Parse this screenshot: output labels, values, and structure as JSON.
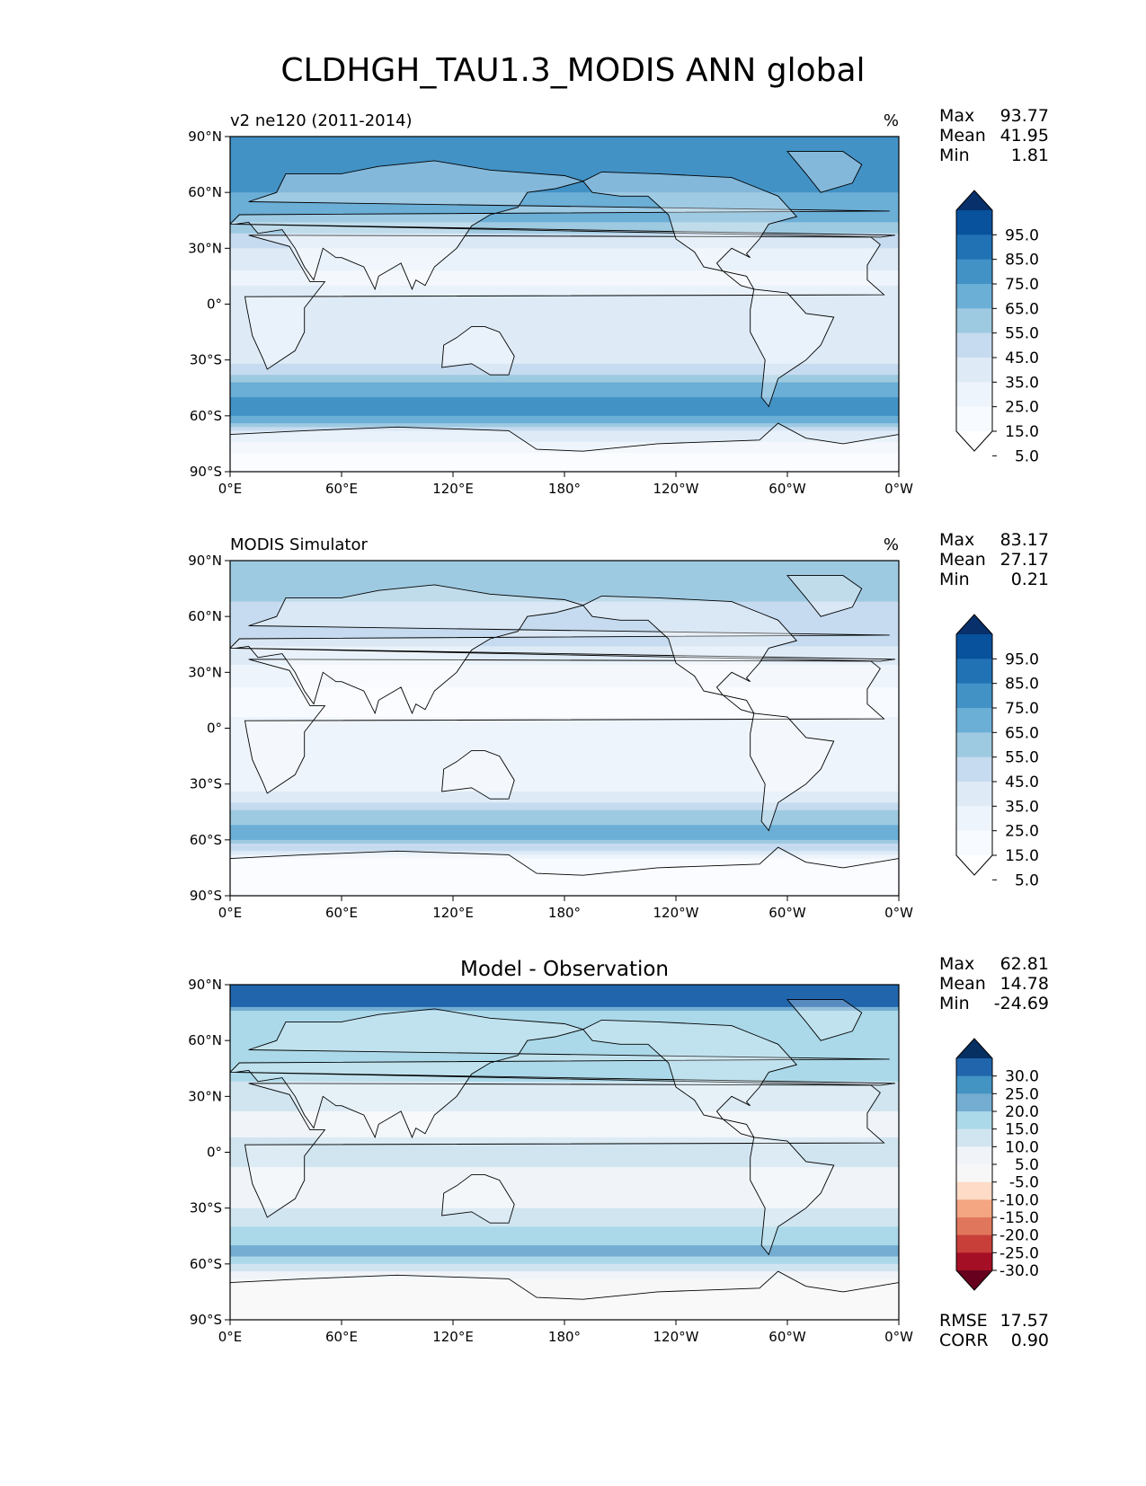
{
  "figure": {
    "title": "CLDHGH_TAU1.3_MODIS ANN global"
  },
  "panels": [
    {
      "left_title": "v2 ne120 (2011-2014)",
      "center_title": "",
      "units": "%",
      "stats": [
        {
          "label": "Max",
          "value": "93.77"
        },
        {
          "label": "Mean",
          "value": "41.95"
        },
        {
          "label": "Min",
          "value": "1.81"
        }
      ],
      "colorbar": {
        "levels": [
          "95.0",
          "85.0",
          "75.0",
          "65.0",
          "55.0",
          "45.0",
          "35.0",
          "25.0",
          "15.0",
          "5.0"
        ],
        "colors": [
          "#08306b",
          "#08519c",
          "#2171b5",
          "#4292c6",
          "#6baed6",
          "#9ecae1",
          "#c6dbef",
          "#deebf7",
          "#eef4fb",
          "#f7fbff",
          "#ffffff"
        ]
      },
      "extra_stats": []
    },
    {
      "left_title": "MODIS Simulator",
      "center_title": "",
      "units": "%",
      "stats": [
        {
          "label": "Max",
          "value": "83.17"
        },
        {
          "label": "Mean",
          "value": "27.17"
        },
        {
          "label": "Min",
          "value": "0.21"
        }
      ],
      "colorbar": {
        "levels": [
          "95.0",
          "85.0",
          "75.0",
          "65.0",
          "55.0",
          "45.0",
          "35.0",
          "25.0",
          "15.0",
          "5.0"
        ],
        "colors": [
          "#08306b",
          "#08519c",
          "#2171b5",
          "#4292c6",
          "#6baed6",
          "#9ecae1",
          "#c6dbef",
          "#deebf7",
          "#eef4fb",
          "#f7fbff",
          "#ffffff"
        ]
      },
      "extra_stats": []
    },
    {
      "left_title": "",
      "center_title": "Model - Observation",
      "units": "",
      "stats": [
        {
          "label": "Max",
          "value": "62.81"
        },
        {
          "label": "Mean",
          "value": "14.78"
        },
        {
          "label": "Min",
          "value": "-24.69"
        }
      ],
      "colorbar": {
        "levels": [
          "30.0",
          "25.0",
          "20.0",
          "15.0",
          "10.0",
          "5.0",
          "-5.0",
          "-10.0",
          "-15.0",
          "-20.0",
          "-25.0",
          "-30.0"
        ],
        "colors": [
          "#053061",
          "#2166ac",
          "#4393c3",
          "#74add1",
          "#abd9e9",
          "#d1e5f0",
          "#f0f4f8",
          "#f7f7f7",
          "#fddbc7",
          "#f4a582",
          "#e0775c",
          "#c83f3a",
          "#a50f26",
          "#67001f"
        ]
      },
      "extra_stats": [
        {
          "label": "RMSE",
          "value": "17.57"
        },
        {
          "label": "CORR",
          "value": "0.90"
        }
      ]
    }
  ],
  "axes": {
    "x_ticks": [
      "0°E",
      "60°E",
      "120°E",
      "180°",
      "120°W",
      "60°W",
      "0°W"
    ],
    "y_ticks": [
      "90°N",
      "60°N",
      "30°N",
      "0°",
      "30°S",
      "60°S",
      "90°S"
    ],
    "x_range": [
      0,
      360
    ],
    "y_range": [
      -90,
      90
    ]
  },
  "chart_data": [
    {
      "type": "heatmap",
      "title": "v2 ne120 (2011-2014)",
      "units": "%",
      "xlim": [
        0,
        360
      ],
      "ylim": [
        -90,
        90
      ],
      "levels": [
        5,
        15,
        25,
        35,
        45,
        55,
        65,
        75,
        85,
        95
      ],
      "stats": {
        "max": 93.77,
        "mean": 41.95,
        "min": 1.81
      },
      "zonal_profile": {
        "lat": [
          90,
          75,
          60,
          45,
          30,
          15,
          0,
          -15,
          -30,
          -45,
          -55,
          -60,
          -70,
          -80,
          -90
        ],
        "value": [
          75,
          70,
          65,
          55,
          35,
          22,
          30,
          25,
          30,
          60,
          72,
          68,
          30,
          15,
          12
        ]
      }
    },
    {
      "type": "heatmap",
      "title": "MODIS Simulator",
      "units": "%",
      "xlim": [
        0,
        360
      ],
      "ylim": [
        -90,
        90
      ],
      "levels": [
        5,
        15,
        25,
        35,
        45,
        55,
        65,
        75,
        85,
        95
      ],
      "stats": {
        "max": 83.17,
        "mean": 27.17,
        "min": 0.21
      },
      "zonal_profile": {
        "lat": [
          90,
          75,
          60,
          45,
          30,
          15,
          0,
          -15,
          -30,
          -45,
          -55,
          -60,
          -70,
          -80,
          -90
        ],
        "value": [
          45,
          50,
          40,
          35,
          20,
          10,
          18,
          15,
          18,
          45,
          58,
          55,
          15,
          8,
          5
        ]
      }
    },
    {
      "type": "heatmap",
      "title": "Model - Observation",
      "units": "",
      "xlim": [
        0,
        360
      ],
      "ylim": [
        -90,
        90
      ],
      "levels": [
        -30,
        -25,
        -20,
        -15,
        -10,
        -5,
        5,
        10,
        15,
        20,
        25,
        30
      ],
      "stats": {
        "max": 62.81,
        "mean": 14.78,
        "min": -24.69,
        "rmse": 17.57,
        "corr": 0.9
      },
      "zonal_profile": {
        "lat": [
          90,
          80,
          75,
          60,
          45,
          30,
          15,
          0,
          -15,
          -30,
          -45,
          -55,
          -60,
          -70,
          -80,
          -90
        ],
        "value": [
          35,
          35,
          15,
          20,
          18,
          12,
          8,
          12,
          8,
          10,
          18,
          22,
          15,
          2,
          -2,
          0
        ]
      }
    }
  ]
}
